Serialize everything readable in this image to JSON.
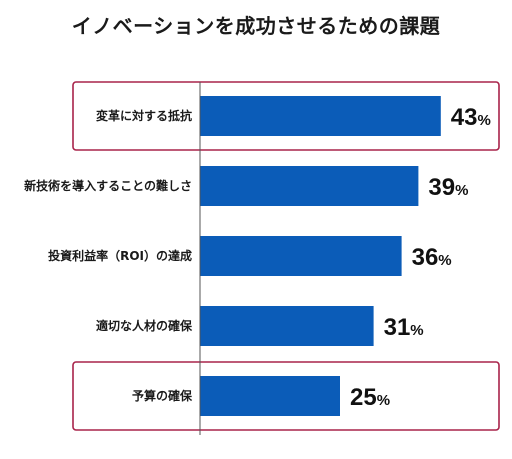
{
  "chart_data": {
    "type": "bar",
    "orientation": "horizontal",
    "title": "イノベーションを成功させるための課題",
    "categories": [
      "変革に対する抵抗",
      "新技術を導入することの難しさ",
      "投資利益率（ROI）の達成",
      "適切な人材の確保",
      "予算の確保"
    ],
    "values": [
      43,
      39,
      36,
      31,
      25
    ],
    "unit": "%",
    "highlighted": [
      "変革に対する抵抗",
      "予算の確保"
    ],
    "grid": false,
    "legend": "none"
  },
  "colors": {
    "bar": "#0b5cb8",
    "highlight_border": "#a8234a",
    "axis": "#555555",
    "text": "#1a1a1a"
  }
}
